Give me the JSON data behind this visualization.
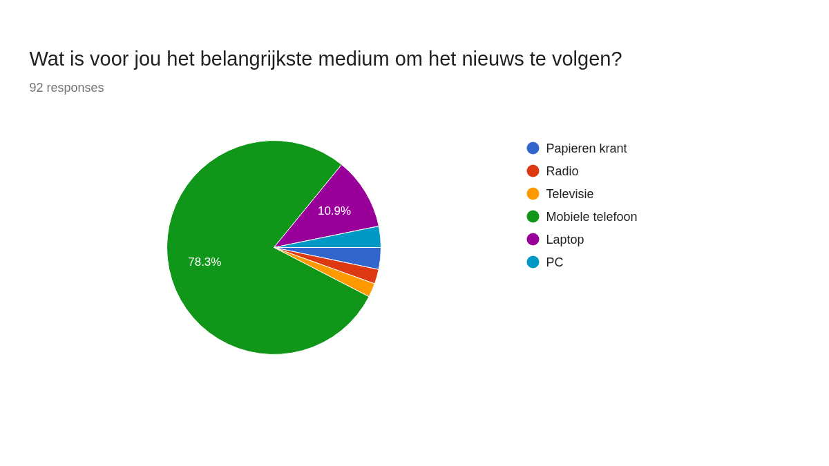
{
  "chart_data": {
    "type": "pie",
    "title": "Wat is voor jou het belangrijkste medium om het nieuws te volgen?",
    "subtitle": "92 responses",
    "categories": [
      "Papieren krant",
      "Radio",
      "Televisie",
      "Mobiele telefoon",
      "Laptop",
      "PC"
    ],
    "values": [
      3.3,
      2.2,
      2.1,
      78.3,
      10.9,
      3.2
    ],
    "colors": [
      "#3366cc",
      "#dc3912",
      "#ff9900",
      "#109618",
      "#990099",
      "#0099c6"
    ],
    "value_labels": [
      null,
      null,
      null,
      "78.3%",
      "10.9%",
      null
    ],
    "legend": "right"
  }
}
